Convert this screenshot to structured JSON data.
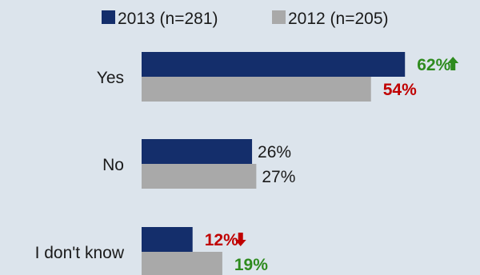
{
  "colors": {
    "background": "#dce4ec",
    "series_2013": "#142e6b",
    "series_2012": "#a9a9a9",
    "increase": "#2e8b1e",
    "decrease": "#c00000",
    "text": "#1a1a1a"
  },
  "chart_data": {
    "type": "bar",
    "orientation": "horizontal",
    "categories": [
      "Yes",
      "No",
      "I don't know"
    ],
    "series": [
      {
        "name": "2013 (n=281)",
        "values": [
          62,
          26,
          12
        ]
      },
      {
        "name": "2012 (n=205)",
        "values": [
          54,
          27,
          19
        ]
      }
    ],
    "data_labels": [
      [
        "62%",
        "26%",
        "12%"
      ],
      [
        "54%",
        "27%",
        "19%"
      ]
    ],
    "label_emphasis": [
      [
        "up",
        "none",
        "down"
      ],
      [
        "down",
        "none",
        "up"
      ]
    ],
    "trend_arrows": [
      [
        "up",
        "none",
        "down"
      ],
      [
        "none",
        "none",
        "none"
      ]
    ],
    "xlim": [
      0,
      100
    ],
    "legend_position": "top",
    "grid": false
  }
}
